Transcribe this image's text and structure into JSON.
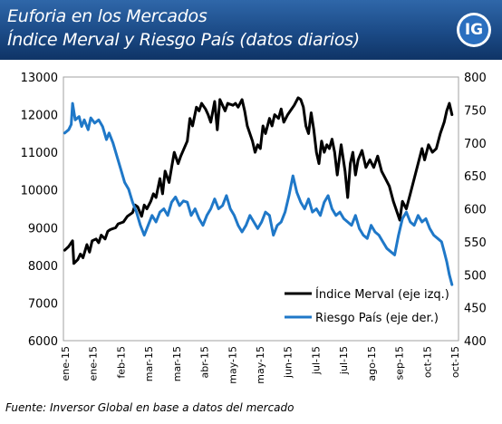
{
  "header": {
    "title_line1": "Euforia en los Mercados",
    "title_line2": "Índice Merval y Riesgo País (datos diarios)",
    "logo_text": "IG"
  },
  "source": "Fuente: Inversor Global en base a datos del mercado",
  "colors": {
    "merval": "#000000",
    "riesgo": "#1f78c8",
    "header": "#1b4a86"
  },
  "chart_data": {
    "type": "line",
    "x_unit": "date",
    "y_left_lim": [
      6000,
      13000
    ],
    "y_left_ticks": [
      "6000",
      "7000",
      "8000",
      "9000",
      "10000",
      "11000",
      "12000",
      "13000"
    ],
    "y_right_lim": [
      400,
      800
    ],
    "y_right_ticks": [
      "400",
      "450",
      "500",
      "550",
      "600",
      "650",
      "700",
      "750",
      "800"
    ],
    "x_ticks": [
      "ene-15",
      "ene-15",
      "feb-15",
      "mar-15",
      "mar-15",
      "abr-15",
      "may-15",
      "may-15",
      "jun-15",
      "jul-15",
      "jul-15",
      "ago-15",
      "sep-15",
      "oct-15",
      "oct-15"
    ],
    "grid": false,
    "legend_position": "bottom-right",
    "series": [
      {
        "name": "Índice Merval (eje izq.)",
        "axis": "left",
        "color": "#000000",
        "points": [
          [
            "2015-01-02",
            8400
          ],
          [
            "2015-01-05",
            8500
          ],
          [
            "2015-01-07",
            8600
          ],
          [
            "2015-01-08",
            8650
          ],
          [
            "2015-01-09",
            8050
          ],
          [
            "2015-01-12",
            8150
          ],
          [
            "2015-01-14",
            8300
          ],
          [
            "2015-01-16",
            8200
          ],
          [
            "2015-01-19",
            8550
          ],
          [
            "2015-01-21",
            8350
          ],
          [
            "2015-01-23",
            8650
          ],
          [
            "2015-01-26",
            8700
          ],
          [
            "2015-01-28",
            8600
          ],
          [
            "2015-01-30",
            8800
          ],
          [
            "2015-02-02",
            8700
          ],
          [
            "2015-02-04",
            8900
          ],
          [
            "2015-02-06",
            8950
          ],
          [
            "2015-02-10",
            9000
          ],
          [
            "2015-02-12",
            9100
          ],
          [
            "2015-02-16",
            9150
          ],
          [
            "2015-02-19",
            9300
          ],
          [
            "2015-02-23",
            9400
          ],
          [
            "2015-02-25",
            9600
          ],
          [
            "2015-02-27",
            9550
          ],
          [
            "2015-03-02",
            9300
          ],
          [
            "2015-03-04",
            9600
          ],
          [
            "2015-03-06",
            9500
          ],
          [
            "2015-03-09",
            9700
          ],
          [
            "2015-03-11",
            9900
          ],
          [
            "2015-03-13",
            9800
          ],
          [
            "2015-03-16",
            10300
          ],
          [
            "2015-03-18",
            9900
          ],
          [
            "2015-03-20",
            10500
          ],
          [
            "2015-03-23",
            10200
          ],
          [
            "2015-03-25",
            10600
          ],
          [
            "2015-03-27",
            11000
          ],
          [
            "2015-03-30",
            10700
          ],
          [
            "2015-04-01",
            10900
          ],
          [
            "2015-04-06",
            11300
          ],
          [
            "2015-04-08",
            11900
          ],
          [
            "2015-04-10",
            11700
          ],
          [
            "2015-04-13",
            12200
          ],
          [
            "2015-04-15",
            12100
          ],
          [
            "2015-04-17",
            12300
          ],
          [
            "2015-04-20",
            12150
          ],
          [
            "2015-04-22",
            12000
          ],
          [
            "2015-04-24",
            11800
          ],
          [
            "2015-04-27",
            12350
          ],
          [
            "2015-04-29",
            11600
          ],
          [
            "2015-05-01",
            12400
          ],
          [
            "2015-05-05",
            12100
          ],
          [
            "2015-05-07",
            12300
          ],
          [
            "2015-05-11",
            12250
          ],
          [
            "2015-05-13",
            12300
          ],
          [
            "2015-05-15",
            12200
          ],
          [
            "2015-05-18",
            12400
          ],
          [
            "2015-05-20",
            12100
          ],
          [
            "2015-05-22",
            11700
          ],
          [
            "2015-05-26",
            11300
          ],
          [
            "2015-05-28",
            11000
          ],
          [
            "2015-05-30",
            11200
          ],
          [
            "2015-06-01",
            11100
          ],
          [
            "2015-06-03",
            11700
          ],
          [
            "2015-06-05",
            11500
          ],
          [
            "2015-06-08",
            11900
          ],
          [
            "2015-06-10",
            11700
          ],
          [
            "2015-06-12",
            12000
          ],
          [
            "2015-06-15",
            11900
          ],
          [
            "2015-06-17",
            12150
          ],
          [
            "2015-06-19",
            11800
          ],
          [
            "2015-06-22",
            12000
          ],
          [
            "2015-06-24",
            12100
          ],
          [
            "2015-06-27",
            12250
          ],
          [
            "2015-06-30",
            12450
          ],
          [
            "2015-07-02",
            12400
          ],
          [
            "2015-07-04",
            12200
          ],
          [
            "2015-07-06",
            11700
          ],
          [
            "2015-07-08",
            11500
          ],
          [
            "2015-07-10",
            12050
          ],
          [
            "2015-07-12",
            11600
          ],
          [
            "2015-07-14",
            11000
          ],
          [
            "2015-07-16",
            10700
          ],
          [
            "2015-07-18",
            11300
          ],
          [
            "2015-07-20",
            11000
          ],
          [
            "2015-07-22",
            11200
          ],
          [
            "2015-07-24",
            11100
          ],
          [
            "2015-07-26",
            11350
          ],
          [
            "2015-07-28",
            11000
          ],
          [
            "2015-07-30",
            10400
          ],
          [
            "2015-08-02",
            11200
          ],
          [
            "2015-08-05",
            10500
          ],
          [
            "2015-08-07",
            9800
          ],
          [
            "2015-08-09",
            10700
          ],
          [
            "2015-08-11",
            11000
          ],
          [
            "2015-08-13",
            10400
          ],
          [
            "2015-08-15",
            10800
          ],
          [
            "2015-08-18",
            11050
          ],
          [
            "2015-08-21",
            10600
          ],
          [
            "2015-08-24",
            10800
          ],
          [
            "2015-08-27",
            10600
          ],
          [
            "2015-08-30",
            10900
          ],
          [
            "2015-09-02",
            10500
          ],
          [
            "2015-09-05",
            10300
          ],
          [
            "2015-09-08",
            10100
          ],
          [
            "2015-09-11",
            9700
          ],
          [
            "2015-09-14",
            9400
          ],
          [
            "2015-09-16",
            9200
          ],
          [
            "2015-09-18",
            9700
          ],
          [
            "2015-09-21",
            9500
          ],
          [
            "2015-09-24",
            9900
          ],
          [
            "2015-09-27",
            10300
          ],
          [
            "2015-09-30",
            10700
          ],
          [
            "2015-10-03",
            11100
          ],
          [
            "2015-10-05",
            10800
          ],
          [
            "2015-10-08",
            11200
          ],
          [
            "2015-10-11",
            11000
          ],
          [
            "2015-10-14",
            11100
          ],
          [
            "2015-10-17",
            11500
          ],
          [
            "2015-10-20",
            11800
          ],
          [
            "2015-10-22",
            12100
          ],
          [
            "2015-10-24",
            12300
          ],
          [
            "2015-10-26",
            12000
          ]
        ]
      },
      {
        "name": "Riesgo País (eje der.)",
        "axis": "right",
        "color": "#1f78c8",
        "points": [
          [
            "2015-01-02",
            715
          ],
          [
            "2015-01-05",
            720
          ],
          [
            "2015-01-07",
            728
          ],
          [
            "2015-01-08",
            760
          ],
          [
            "2015-01-10",
            735
          ],
          [
            "2015-01-13",
            740
          ],
          [
            "2015-01-15",
            725
          ],
          [
            "2015-01-17",
            735
          ],
          [
            "2015-01-20",
            720
          ],
          [
            "2015-01-22",
            738
          ],
          [
            "2015-01-25",
            730
          ],
          [
            "2015-01-28",
            735
          ],
          [
            "2015-01-31",
            725
          ],
          [
            "2015-02-03",
            705
          ],
          [
            "2015-02-05",
            715
          ],
          [
            "2015-02-08",
            700
          ],
          [
            "2015-02-11",
            680
          ],
          [
            "2015-02-14",
            660
          ],
          [
            "2015-02-17",
            640
          ],
          [
            "2015-02-20",
            630
          ],
          [
            "2015-02-23",
            610
          ],
          [
            "2015-02-26",
            595
          ],
          [
            "2015-03-01",
            575
          ],
          [
            "2015-03-04",
            560
          ],
          [
            "2015-03-07",
            575
          ],
          [
            "2015-03-10",
            590
          ],
          [
            "2015-03-13",
            580
          ],
          [
            "2015-03-16",
            595
          ],
          [
            "2015-03-19",
            600
          ],
          [
            "2015-03-22",
            590
          ],
          [
            "2015-03-25",
            610
          ],
          [
            "2015-03-28",
            618
          ],
          [
            "2015-03-31",
            605
          ],
          [
            "2015-04-03",
            612
          ],
          [
            "2015-04-06",
            610
          ],
          [
            "2015-04-09",
            590
          ],
          [
            "2015-04-12",
            600
          ],
          [
            "2015-04-15",
            585
          ],
          [
            "2015-04-18",
            575
          ],
          [
            "2015-04-21",
            590
          ],
          [
            "2015-04-24",
            600
          ],
          [
            "2015-04-27",
            615
          ],
          [
            "2015-04-30",
            600
          ],
          [
            "2015-05-03",
            605
          ],
          [
            "2015-05-06",
            620
          ],
          [
            "2015-05-09",
            600
          ],
          [
            "2015-05-12",
            590
          ],
          [
            "2015-05-15",
            575
          ],
          [
            "2015-05-18",
            565
          ],
          [
            "2015-05-21",
            575
          ],
          [
            "2015-05-24",
            590
          ],
          [
            "2015-05-27",
            580
          ],
          [
            "2015-05-30",
            570
          ],
          [
            "2015-06-02",
            580
          ],
          [
            "2015-06-05",
            595
          ],
          [
            "2015-06-08",
            590
          ],
          [
            "2015-06-11",
            560
          ],
          [
            "2015-06-14",
            575
          ],
          [
            "2015-06-17",
            580
          ],
          [
            "2015-06-20",
            595
          ],
          [
            "2015-06-23",
            620
          ],
          [
            "2015-06-26",
            650
          ],
          [
            "2015-06-29",
            625
          ],
          [
            "2015-07-02",
            610
          ],
          [
            "2015-07-05",
            600
          ],
          [
            "2015-07-08",
            615
          ],
          [
            "2015-07-11",
            595
          ],
          [
            "2015-07-14",
            600
          ],
          [
            "2015-07-17",
            590
          ],
          [
            "2015-07-20",
            610
          ],
          [
            "2015-07-23",
            620
          ],
          [
            "2015-07-26",
            600
          ],
          [
            "2015-07-29",
            590
          ],
          [
            "2015-08-01",
            595
          ],
          [
            "2015-08-04",
            585
          ],
          [
            "2015-08-07",
            580
          ],
          [
            "2015-08-10",
            575
          ],
          [
            "2015-08-13",
            590
          ],
          [
            "2015-08-16",
            570
          ],
          [
            "2015-08-19",
            560
          ],
          [
            "2015-08-22",
            555
          ],
          [
            "2015-08-25",
            575
          ],
          [
            "2015-08-28",
            565
          ],
          [
            "2015-08-31",
            560
          ],
          [
            "2015-09-03",
            550
          ],
          [
            "2015-09-06",
            540
          ],
          [
            "2015-09-09",
            535
          ],
          [
            "2015-09-12",
            530
          ],
          [
            "2015-09-15",
            560
          ],
          [
            "2015-09-18",
            585
          ],
          [
            "2015-09-21",
            595
          ],
          [
            "2015-09-24",
            580
          ],
          [
            "2015-09-27",
            575
          ],
          [
            "2015-09-30",
            590
          ],
          [
            "2015-10-03",
            580
          ],
          [
            "2015-10-06",
            585
          ],
          [
            "2015-10-09",
            570
          ],
          [
            "2015-10-12",
            560
          ],
          [
            "2015-10-15",
            555
          ],
          [
            "2015-10-18",
            550
          ],
          [
            "2015-10-20",
            535
          ],
          [
            "2015-10-22",
            520
          ],
          [
            "2015-10-24",
            500
          ],
          [
            "2015-10-26",
            485
          ]
        ]
      }
    ]
  }
}
